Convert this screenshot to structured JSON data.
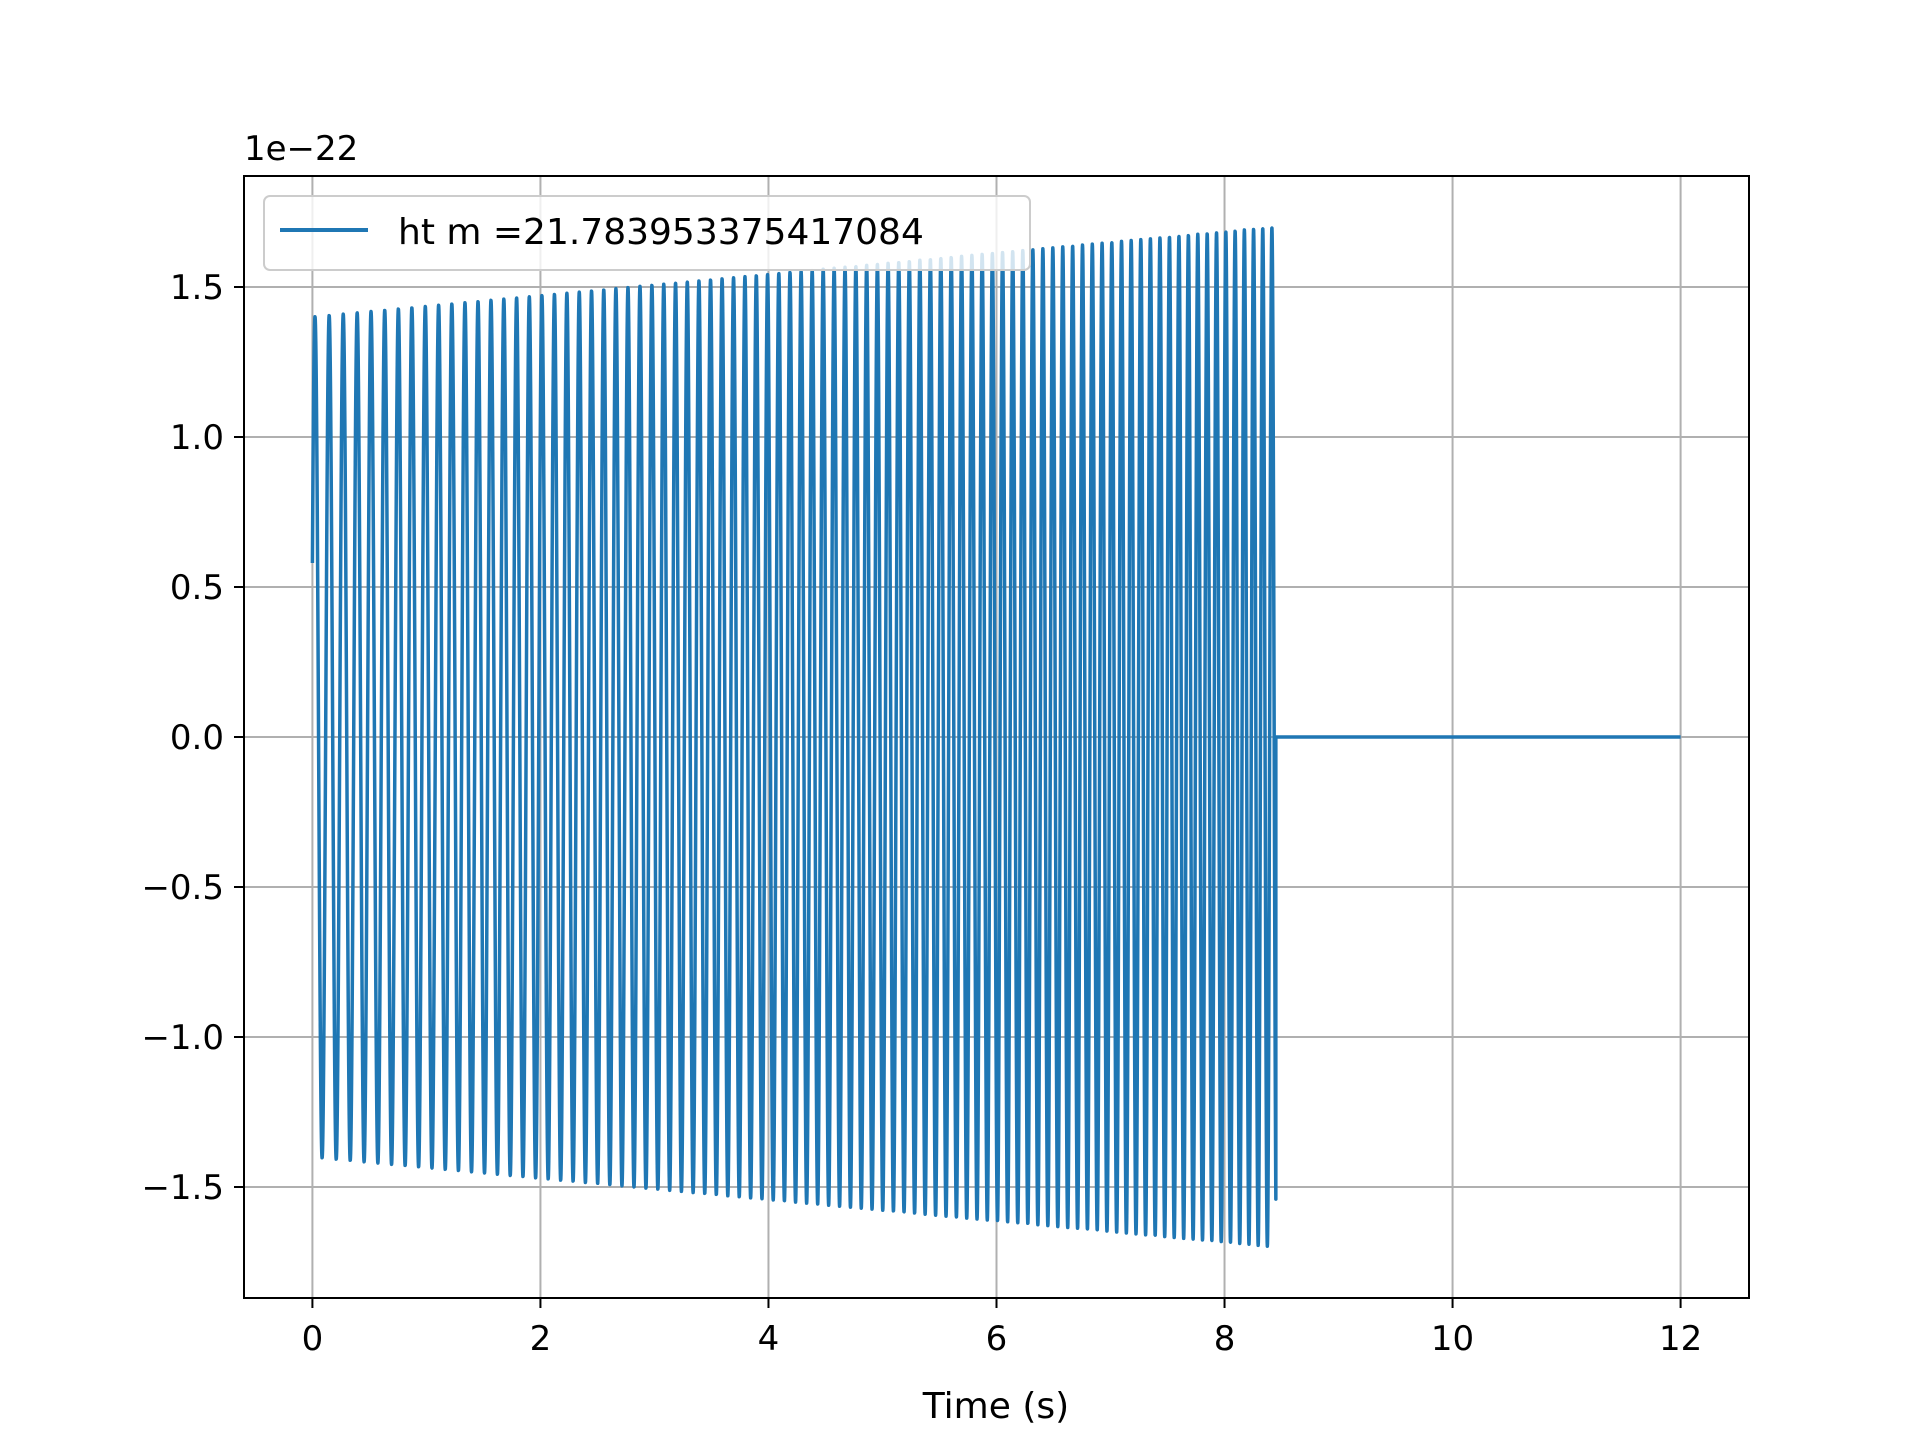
{
  "chart_data": {
    "type": "line",
    "title": "",
    "xlabel": "Time (s)",
    "ylabel": "",
    "offset_label": "1e−22",
    "y_scale_factor": 1e-22,
    "xlim": [
      -0.6,
      12.6
    ],
    "ylim": [
      -1.87,
      1.87
    ],
    "x_ticks": [
      0,
      2,
      4,
      6,
      8,
      10,
      12
    ],
    "x_tick_labels": [
      "0",
      "2",
      "4",
      "6",
      "8",
      "10",
      "12"
    ],
    "y_ticks": [
      -1.5,
      -1.0,
      -0.5,
      0.0,
      0.5,
      1.0,
      1.5
    ],
    "y_tick_labels": [
      "−1.5",
      "−1.0",
      "−0.5",
      "0.0",
      "0.5",
      "1.0",
      "1.5"
    ],
    "grid": true,
    "legend_position": "top-left",
    "series": [
      {
        "name": "ht m =21.783953375417084",
        "color": "#1f77b4",
        "signal": {
          "t_start": 0.0,
          "t_end": 8.45,
          "t_final": 12.0,
          "amplitude_start": 1.4,
          "amplitude_end": 1.7,
          "initial_value": 0.58,
          "cycles_shown": 87,
          "frequency_start_hz": 8.0,
          "frequency_end_hz": 12.5
        }
      }
    ]
  }
}
